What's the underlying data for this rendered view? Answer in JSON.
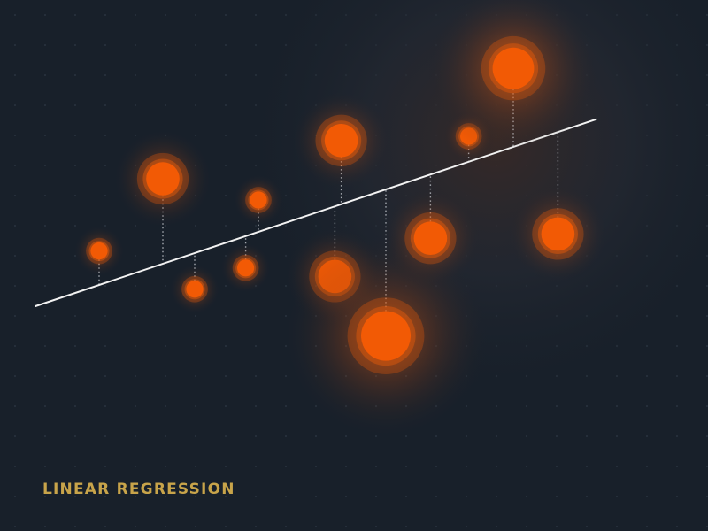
{
  "title": "LINEAR REGRESSION",
  "colors": {
    "background": "#18202a",
    "point": "#f25a05",
    "glow": "#e65a0a",
    "regression_line": "#f2f2f2",
    "residual": "#c9cdd3",
    "title": "#c8a44a"
  },
  "chart_data": {
    "type": "scatter",
    "title": "LINEAR REGRESSION",
    "xlabel": "",
    "ylabel": "",
    "xlim": [
      0,
      100
    ],
    "ylim": [
      0,
      100
    ],
    "grid": false,
    "points": [
      {
        "x": 10,
        "y": 43,
        "size": 1
      },
      {
        "x": 20,
        "y": 60,
        "size": 3
      },
      {
        "x": 25,
        "y": 34,
        "size": 1
      },
      {
        "x": 35,
        "y": 55,
        "size": 1
      },
      {
        "x": 33,
        "y": 39,
        "size": 1
      },
      {
        "x": 48,
        "y": 69,
        "size": 3
      },
      {
        "x": 47,
        "y": 37,
        "size": 3
      },
      {
        "x": 55,
        "y": 23,
        "size": 5
      },
      {
        "x": 62,
        "y": 46,
        "size": 3
      },
      {
        "x": 68,
        "y": 70,
        "size": 1
      },
      {
        "x": 75,
        "y": 86,
        "size": 4
      },
      {
        "x": 82,
        "y": 47,
        "size": 3
      }
    ],
    "regression_line": {
      "x": [
        0,
        88
      ],
      "y": [
        30,
        74
      ]
    },
    "residuals": true
  }
}
